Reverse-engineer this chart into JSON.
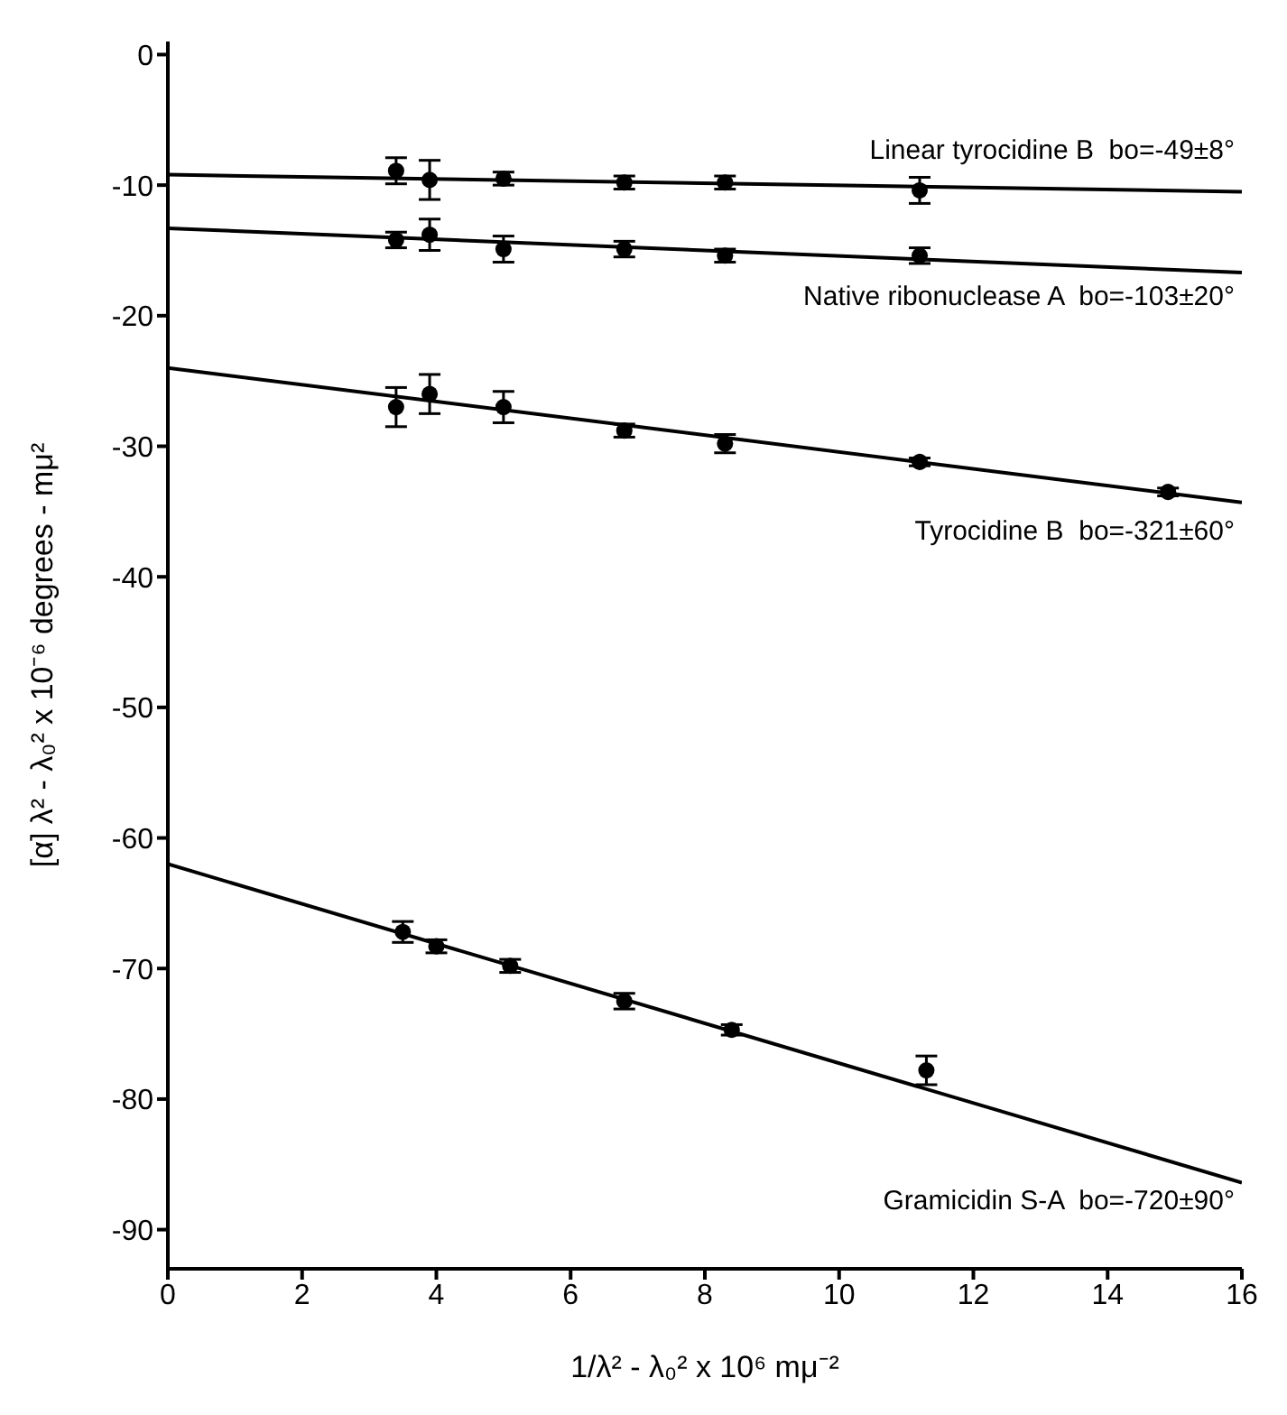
{
  "chart_data": {
    "type": "scatter",
    "xlabel": "1/λ² - λ₀² x 10⁶ mμ⁻²",
    "ylabel": "[α] λ² - λ₀² x 10⁻⁶ degrees - mμ²",
    "xlim": [
      0,
      16
    ],
    "xticks": [
      0,
      2,
      4,
      6,
      8,
      10,
      12,
      14,
      16
    ],
    "ylim": [
      -93,
      1
    ],
    "yticks": [
      0,
      -10,
      -20,
      -30,
      -40,
      -50,
      -60,
      -70,
      -80,
      -90
    ],
    "grid": false,
    "series": [
      {
        "marker": "circle",
        "color": "#000000",
        "x": [
          3.4,
          3.9,
          5.0,
          6.8,
          8.3,
          11.2
        ],
        "values": [
          -8.9,
          -9.6,
          -9.5,
          -9.8,
          -9.8,
          -10.4
        ],
        "errors": [
          1,
          1.5,
          0.5,
          0.5,
          0.5,
          1
        ]
      },
      {
        "marker": "circle",
        "color": "#000000",
        "x": [
          3.4,
          3.9,
          5.0,
          6.8,
          8.3,
          11.2
        ],
        "values": [
          -14.2,
          -13.8,
          -14.9,
          -14.9,
          -15.4,
          -15.4
        ],
        "errors": [
          0.6,
          1.2,
          1,
          0.6,
          0.5,
          0.6
        ]
      },
      {
        "marker": "circle",
        "color": "#000000",
        "x": [
          3.4,
          3.9,
          5.0,
          6.8,
          8.3,
          11.2,
          14.9
        ],
        "values": [
          -27,
          -26,
          -27,
          -28.8,
          -29.8,
          -31.2,
          -33.5
        ],
        "errors": [
          1.5,
          1.5,
          1.2,
          0.5,
          0.7,
          0.3,
          0.3
        ]
      },
      {
        "marker": "circle",
        "color": "#000000",
        "x": [
          3.5,
          4.0,
          5.1,
          6.8,
          8.4,
          11.3
        ],
        "values": [
          -67.2,
          -68.3,
          -69.8,
          -72.5,
          -74.7,
          -77.8
        ],
        "errors": [
          0.8,
          0.5,
          0.5,
          0.6,
          0.4,
          1.1
        ]
      },
      {
        "type": "line",
        "marker": "none",
        "color": "#000000",
        "x": [
          0,
          16
        ],
        "values": [
          -9.2,
          -10.5
        ]
      },
      {
        "type": "line",
        "marker": "none",
        "color": "#000000",
        "x": [
          0,
          16
        ],
        "values": [
          -13.3,
          -16.7
        ]
      },
      {
        "type": "line",
        "marker": "none",
        "color": "#000000",
        "x": [
          0,
          16
        ],
        "values": [
          -24,
          -34.3
        ]
      },
      {
        "type": "line",
        "marker": "none",
        "color": "#000000",
        "x": [
          0,
          16
        ],
        "values": [
          -62,
          -86.4
        ]
      }
    ],
    "annotations": [
      "Linear tyrocidine B  bo=-49±8°",
      "Native ribonuclease A  bo=-103±20°",
      "Tyrocidine B  bo=-321±60°",
      "Gramicidin S-A  bo=-720±90°"
    ]
  }
}
